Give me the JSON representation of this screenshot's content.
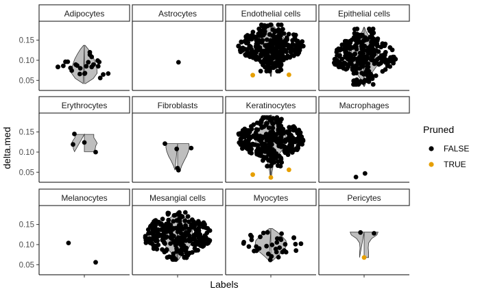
{
  "chart_data": {
    "type": "violin-jitter-facets",
    "xlabel": "Labels",
    "ylabel": "delta.med",
    "ylim": [
      0.025,
      0.197
    ],
    "yticks": [
      0.05,
      0.1,
      0.15
    ],
    "ytick_labels": [
      "0.05",
      "0.10",
      "0.15"
    ],
    "facet_rows": 3,
    "facet_cols": 4,
    "legend": {
      "title": "Pruned",
      "placement": "right",
      "entries": [
        {
          "label": "FALSE",
          "color": "#000000"
        },
        {
          "label": "TRUE",
          "color": "#E69F00"
        }
      ]
    },
    "colors": {
      "violin_fill": "#bebebe",
      "pruned_false": "#000000",
      "pruned_true": "#E69F00"
    },
    "facets": [
      {
        "name": "Adipocytes",
        "violin": {
          "min": 0.042,
          "max": 0.137,
          "profile": [
            [
              0.042,
              0.03
            ],
            [
              0.055,
              0.24
            ],
            [
              0.068,
              0.34
            ],
            [
              0.08,
              0.33
            ],
            [
              0.092,
              0.3
            ],
            [
              0.104,
              0.25
            ],
            [
              0.116,
              0.18
            ],
            [
              0.128,
              0.1
            ],
            [
              0.137,
              0.02
            ]
          ]
        },
        "points_false": 26,
        "points_false_range": [
          0.045,
          0.135
        ],
        "points_true_y": []
      },
      {
        "name": "Astrocytes",
        "violin": null,
        "points_false": 0,
        "points_false_range": [
          0.095,
          0.095
        ],
        "points_true_y": [],
        "points_fixed": [
          [
            0.02,
            0.095
          ]
        ]
      },
      {
        "name": "Endothelial cells",
        "violin": {
          "min": 0.06,
          "max": 0.193,
          "profile": [
            [
              0.06,
              0.01
            ],
            [
              0.078,
              0.03
            ],
            [
              0.092,
              0.08
            ],
            [
              0.104,
              0.2
            ],
            [
              0.116,
              0.34
            ],
            [
              0.13,
              0.4
            ],
            [
              0.145,
              0.39
            ],
            [
              0.16,
              0.32
            ],
            [
              0.174,
              0.18
            ],
            [
              0.186,
              0.06
            ],
            [
              0.193,
              0.01
            ]
          ]
        },
        "points_false": 320,
        "points_false_range": [
          0.073,
          0.188
        ],
        "points_true_y": [
          0.063,
          0.064
        ]
      },
      {
        "name": "Epithelial cells",
        "violin": {
          "min": 0.035,
          "max": 0.182,
          "profile": [
            [
              0.035,
              0.01
            ],
            [
              0.05,
              0.07
            ],
            [
              0.068,
              0.2
            ],
            [
              0.085,
              0.33
            ],
            [
              0.1,
              0.37
            ],
            [
              0.115,
              0.36
            ],
            [
              0.13,
              0.32
            ],
            [
              0.145,
              0.24
            ],
            [
              0.16,
              0.13
            ],
            [
              0.172,
              0.05
            ],
            [
              0.182,
              0.01
            ]
          ]
        },
        "points_false": 260,
        "points_false_range": [
          0.04,
          0.178
        ],
        "points_true_y": []
      },
      {
        "name": "Erythrocytes",
        "violin": {
          "min": 0.101,
          "max": 0.144,
          "profile": [
            [
              0.101,
              0.26
            ],
            [
              0.108,
              0.29
            ],
            [
              0.115,
              0.3
            ],
            [
              0.122,
              0.34
            ],
            [
              0.129,
              0.3
            ],
            [
              0.136,
              0.25
            ],
            [
              0.144,
              0.25
            ]
          ]
        },
        "points_false": 0,
        "points_false_range": [
          0.1,
          0.144
        ],
        "points_true_y": [],
        "points_fixed": [
          [
            -0.22,
            0.145
          ],
          [
            -0.25,
            0.119
          ],
          [
            0.0,
            0.124
          ],
          [
            0.25,
            0.1
          ]
        ]
      },
      {
        "name": "Fibroblasts",
        "violin": {
          "min": 0.055,
          "max": 0.121,
          "profile": [
            [
              0.055,
              0.07
            ],
            [
              0.066,
              0.11
            ],
            [
              0.078,
              0.17
            ],
            [
              0.09,
              0.24
            ],
            [
              0.102,
              0.29
            ],
            [
              0.112,
              0.31
            ],
            [
              0.121,
              0.3
            ]
          ]
        },
        "points_false": 0,
        "points_false_range": [
          0.055,
          0.121
        ],
        "points_true_y": [],
        "points_fixed": [
          [
            -0.28,
            0.121
          ],
          [
            -0.02,
            0.108
          ],
          [
            0.0,
            0.06
          ],
          [
            0.02,
            0.055
          ],
          [
            0.3,
            0.11
          ]
        ]
      },
      {
        "name": "Keratinocytes",
        "violin": {
          "min": 0.035,
          "max": 0.192,
          "profile": [
            [
              0.035,
              0.01
            ],
            [
              0.05,
              0.03
            ],
            [
              0.065,
              0.06
            ],
            [
              0.08,
              0.1
            ],
            [
              0.095,
              0.22
            ],
            [
              0.11,
              0.34
            ],
            [
              0.125,
              0.4
            ],
            [
              0.14,
              0.4
            ],
            [
              0.155,
              0.34
            ],
            [
              0.17,
              0.22
            ],
            [
              0.182,
              0.08
            ],
            [
              0.192,
              0.01
            ]
          ]
        },
        "points_false": 300,
        "points_false_range": [
          0.065,
          0.186
        ],
        "points_true_y": [
          0.044,
          0.037,
          0.056
        ]
      },
      {
        "name": "Macrophages",
        "violin": null,
        "points_false": 0,
        "points_false_range": [
          0.038,
          0.048
        ],
        "points_true_y": [],
        "points_fixed": [
          [
            -0.18,
            0.038
          ],
          [
            0.02,
            0.047
          ]
        ]
      },
      {
        "name": "Melanocytes",
        "violin": null,
        "points_false": 0,
        "points_false_range": [
          0.056,
          0.104
        ],
        "points_true_y": [],
        "points_fixed": [
          [
            -0.35,
            0.104
          ],
          [
            0.25,
            0.056
          ]
        ]
      },
      {
        "name": "Mesangial cells",
        "violin": {
          "min": 0.062,
          "max": 0.182,
          "profile": [
            [
              0.062,
              0.02
            ],
            [
              0.075,
              0.12
            ],
            [
              0.09,
              0.28
            ],
            [
              0.105,
              0.38
            ],
            [
              0.12,
              0.4
            ],
            [
              0.135,
              0.39
            ],
            [
              0.15,
              0.34
            ],
            [
              0.165,
              0.22
            ],
            [
              0.175,
              0.08
            ],
            [
              0.182,
              0.01
            ]
          ]
        },
        "points_false": 280,
        "points_false_range": [
          0.063,
          0.18
        ],
        "points_true_y": []
      },
      {
        "name": "Myocytes",
        "violin": {
          "min": 0.06,
          "max": 0.14,
          "profile": [
            [
              0.06,
              0.05
            ],
            [
              0.072,
              0.18
            ],
            [
              0.085,
              0.34
            ],
            [
              0.098,
              0.42
            ],
            [
              0.11,
              0.4
            ],
            [
              0.122,
              0.28
            ],
            [
              0.132,
              0.16
            ],
            [
              0.14,
              0.04
            ]
          ]
        },
        "points_false": 36,
        "points_false_range": [
          0.062,
          0.138
        ],
        "points_true_y": []
      },
      {
        "name": "Pericytes",
        "violin": {
          "min": 0.068,
          "max": 0.131,
          "profile": [
            [
              0.068,
              0.12
            ],
            [
              0.08,
              0.12
            ],
            [
              0.092,
              0.11
            ],
            [
              0.104,
              0.12
            ],
            [
              0.115,
              0.2
            ],
            [
              0.124,
              0.34
            ],
            [
              0.131,
              0.37
            ]
          ]
        },
        "points_false": 0,
        "points_false_range": [
          0.12,
          0.13
        ],
        "points_true_y": [],
        "points_fixed": [
          [
            -0.08,
            0.13
          ],
          [
            0.22,
            0.128
          ]
        ],
        "points_true_fixed": [
          [
            0.0,
            0.068
          ]
        ]
      }
    ]
  }
}
